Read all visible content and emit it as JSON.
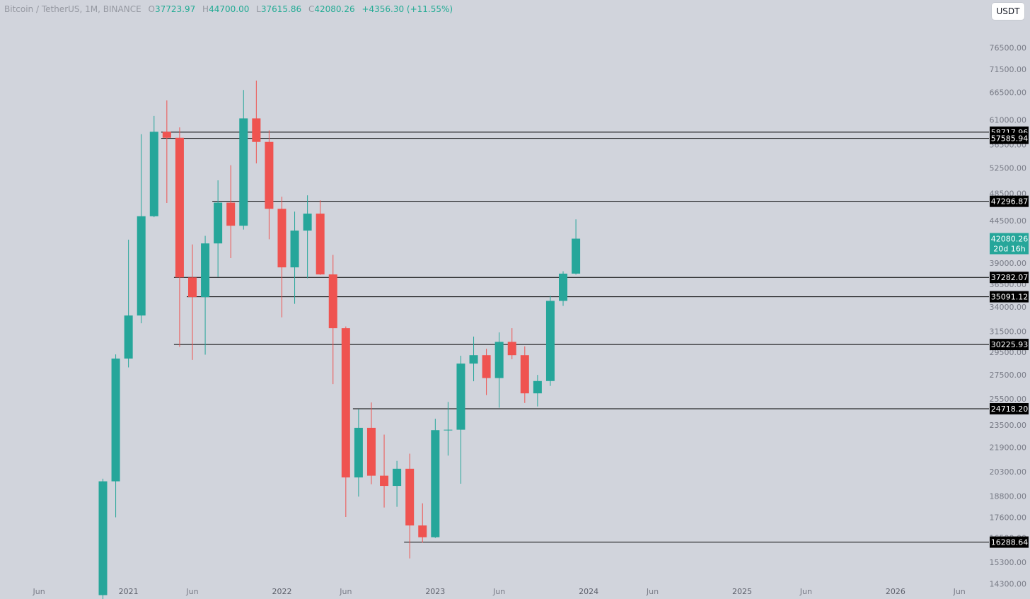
{
  "header": {
    "symbol": "Bitcoin / TetherUS, 1M, BINANCE",
    "o_label": "O",
    "o_value": "37723.97",
    "h_label": "H",
    "h_value": "44700.00",
    "l_label": "L",
    "l_value": "37615.86",
    "c_label": "C",
    "c_value": "42080.26",
    "change": "+4356.30 (+11.55%)"
  },
  "currency_button": "USDT",
  "countdown": "20d 16h",
  "colors": {
    "background": "#d1d4dc",
    "bullish": "#26a69a",
    "bearish": "#ef5350",
    "level_line": "#000000",
    "level_label_bg": "#000000"
  },
  "chart_data": {
    "type": "candlestick",
    "price_axis_scale": "log",
    "ylim": [
      14000,
      84000
    ],
    "y_ticks": [
      "14300.00",
      "15300.00",
      "16500.00",
      "17600.00",
      "18800.00",
      "20300.00",
      "21900.00",
      "23500.00",
      "25500.00",
      "27500.00",
      "29500.00",
      "31500.00",
      "34000.00",
      "36500.00",
      "39000.00",
      "41500.00",
      "44500.00",
      "48500.00",
      "52500.00",
      "56500.00",
      "61000.00",
      "66500.00",
      "71500.00",
      "76500.00"
    ],
    "x_ticks": [
      "Jun",
      "2021",
      "Jun",
      "2022",
      "Jun",
      "2023",
      "Jun",
      "2024",
      "Jun",
      "2025",
      "Jun",
      "2026",
      "Jun"
    ],
    "x_tick_months": [
      "2020-06",
      "2021-01",
      "2021-06",
      "2022-01",
      "2022-06",
      "2023-01",
      "2023-06",
      "2024-01",
      "2024-06",
      "2025-01",
      "2025-06",
      "2026-01",
      "2026-06"
    ],
    "candles": [
      {
        "t": "2020-11",
        "o": 13800,
        "h": 19860,
        "l": 13200,
        "c": 19700
      },
      {
        "t": "2020-12",
        "o": 19700,
        "h": 29300,
        "l": 17600,
        "c": 28920
      },
      {
        "t": "2021-01",
        "o": 28920,
        "h": 41950,
        "l": 28130,
        "c": 33090
      },
      {
        "t": "2021-02",
        "o": 33090,
        "h": 58350,
        "l": 32300,
        "c": 45140
      },
      {
        "t": "2021-03",
        "o": 45140,
        "h": 61780,
        "l": 45000,
        "c": 58790
      },
      {
        "t": "2021-04",
        "o": 58790,
        "h": 64850,
        "l": 47050,
        "c": 57700
      },
      {
        "t": "2021-05",
        "o": 57700,
        "h": 59600,
        "l": 30000,
        "c": 37280
      },
      {
        "t": "2021-06",
        "o": 37280,
        "h": 41330,
        "l": 28800,
        "c": 35050
      },
      {
        "t": "2021-07",
        "o": 35050,
        "h": 42450,
        "l": 29280,
        "c": 41460
      },
      {
        "t": "2021-08",
        "o": 41460,
        "h": 50500,
        "l": 37330,
        "c": 47100
      },
      {
        "t": "2021-09",
        "o": 47100,
        "h": 52950,
        "l": 39600,
        "c": 43820
      },
      {
        "t": "2021-10",
        "o": 43820,
        "h": 67000,
        "l": 43300,
        "c": 61300
      },
      {
        "t": "2021-11",
        "o": 61300,
        "h": 69000,
        "l": 53250,
        "c": 56950
      },
      {
        "t": "2021-12",
        "o": 56950,
        "h": 59050,
        "l": 42000,
        "c": 46200
      },
      {
        "t": "2022-01",
        "o": 46200,
        "h": 47990,
        "l": 32900,
        "c": 38470
      },
      {
        "t": "2022-02",
        "o": 38470,
        "h": 45800,
        "l": 34320,
        "c": 43160
      },
      {
        "t": "2022-03",
        "o": 43160,
        "h": 48190,
        "l": 37170,
        "c": 45510
      },
      {
        "t": "2022-04",
        "o": 45510,
        "h": 47440,
        "l": 37570,
        "c": 37630
      },
      {
        "t": "2022-05",
        "o": 37630,
        "h": 40000,
        "l": 26700,
        "c": 31800
      },
      {
        "t": "2022-06",
        "o": 31800,
        "h": 31980,
        "l": 17620,
        "c": 19940
      },
      {
        "t": "2022-07",
        "o": 19940,
        "h": 24670,
        "l": 18780,
        "c": 23290
      },
      {
        "t": "2022-08",
        "o": 23290,
        "h": 25210,
        "l": 19520,
        "c": 20050
      },
      {
        "t": "2022-09",
        "o": 20050,
        "h": 22800,
        "l": 18150,
        "c": 19420
      },
      {
        "t": "2022-10",
        "o": 19420,
        "h": 21000,
        "l": 18190,
        "c": 20490
      },
      {
        "t": "2022-11",
        "o": 20490,
        "h": 21480,
        "l": 15480,
        "c": 17160
      },
      {
        "t": "2022-12",
        "o": 17160,
        "h": 18390,
        "l": 16260,
        "c": 16540
      },
      {
        "t": "2023-01",
        "o": 16540,
        "h": 23960,
        "l": 16500,
        "c": 23120
      },
      {
        "t": "2023-02",
        "o": 23120,
        "h": 25250,
        "l": 21350,
        "c": 23150
      },
      {
        "t": "2023-03",
        "o": 23150,
        "h": 29180,
        "l": 19550,
        "c": 28470
      },
      {
        "t": "2023-04",
        "o": 28470,
        "h": 30980,
        "l": 26940,
        "c": 29230
      },
      {
        "t": "2023-05",
        "o": 29230,
        "h": 29820,
        "l": 25800,
        "c": 27210
      },
      {
        "t": "2023-06",
        "o": 27210,
        "h": 31390,
        "l": 24800,
        "c": 30470
      },
      {
        "t": "2023-07",
        "o": 30470,
        "h": 31800,
        "l": 28860,
        "c": 29230
      },
      {
        "t": "2023-08",
        "o": 29230,
        "h": 30050,
        "l": 25170,
        "c": 25940
      },
      {
        "t": "2023-09",
        "o": 25940,
        "h": 27480,
        "l": 24900,
        "c": 26960
      },
      {
        "t": "2023-10",
        "o": 26960,
        "h": 35200,
        "l": 26550,
        "c": 34640
      },
      {
        "t": "2023-11",
        "o": 34640,
        "h": 38000,
        "l": 34100,
        "c": 37720
      },
      {
        "t": "2023-12",
        "o": 37723.97,
        "h": 44700,
        "l": 37615.86,
        "c": 42080.26
      }
    ],
    "horizontal_levels": [
      {
        "label": "58717.96",
        "value": 58717.96,
        "from": "2021-04"
      },
      {
        "label": "57585.94",
        "value": 57585.94,
        "from": "2021-04"
      },
      {
        "label": "47296.87",
        "value": 47296.87,
        "from": "2021-08"
      },
      {
        "label": "37282.07",
        "value": 37282.07,
        "from": "2021-05"
      },
      {
        "label": "35091.12",
        "value": 35091.12,
        "from": "2021-06"
      },
      {
        "label": "30225.93",
        "value": 30225.93,
        "from": "2021-05"
      },
      {
        "label": "24718.20",
        "value": 24718.2,
        "from": "2022-07"
      },
      {
        "label": "16288.64",
        "value": 16288.64,
        "from": "2022-11"
      }
    ],
    "last_price": "42080.26",
    "legend": "none",
    "grid": false
  }
}
